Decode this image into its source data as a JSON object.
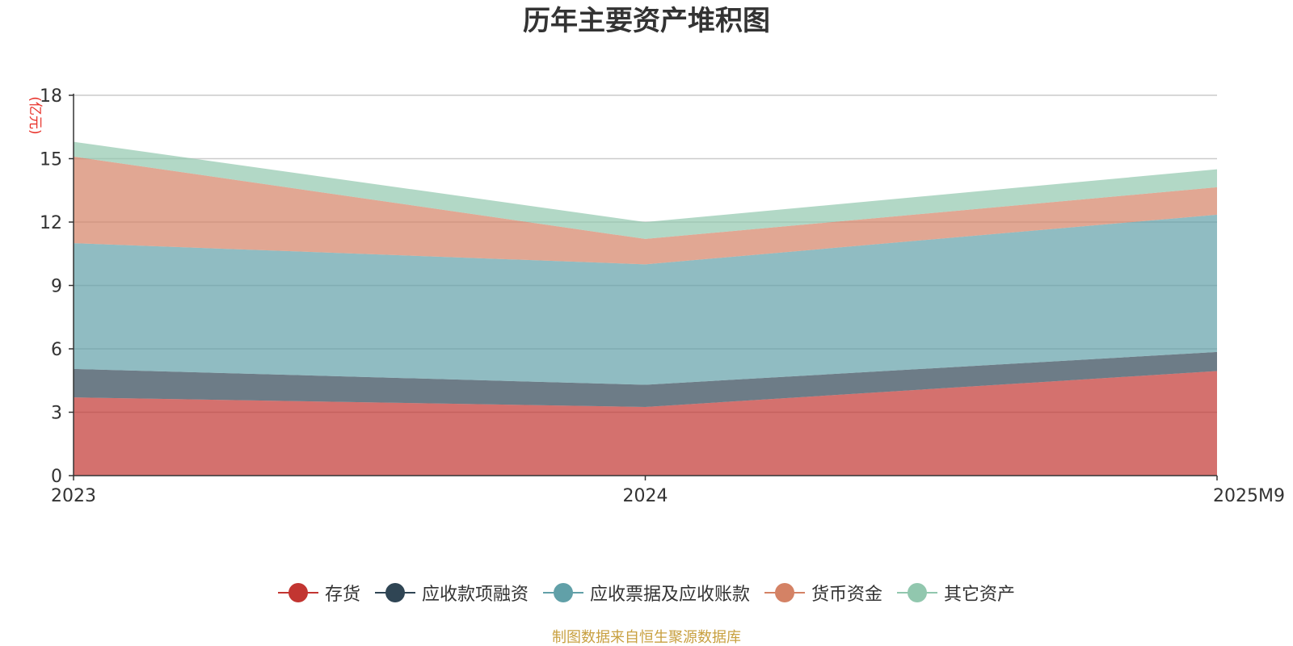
{
  "chart_data": {
    "type": "area",
    "stacked": true,
    "title": "历年主要资产堆积图",
    "unit_label": "(亿元)",
    "categories": [
      "2023",
      "2024",
      "2025M9"
    ],
    "ylim": [
      0,
      18
    ],
    "yticks": [
      0,
      3,
      6,
      9,
      12,
      15,
      18
    ],
    "grid": true,
    "legend_position": "bottom-center",
    "series": [
      {
        "name": "存货",
        "color": "#c23531",
        "values": [
          3.7,
          3.25,
          4.95
        ]
      },
      {
        "name": "应收款项融资",
        "color": "#2f4554",
        "values": [
          1.35,
          1.05,
          0.9
        ]
      },
      {
        "name": "应收票据及应收账款",
        "color": "#61a0a8",
        "values": [
          5.95,
          5.7,
          6.5
        ]
      },
      {
        "name": "货币资金",
        "color": "#d48265",
        "values": [
          4.1,
          1.2,
          1.3
        ]
      },
      {
        "name": "其它资产",
        "color": "#91c7ae",
        "values": [
          0.7,
          0.8,
          0.85
        ]
      }
    ],
    "source_text": "制图数据来自恒生聚源数据库",
    "source_color": "#c8a040",
    "unit_color": "#e8322a"
  }
}
